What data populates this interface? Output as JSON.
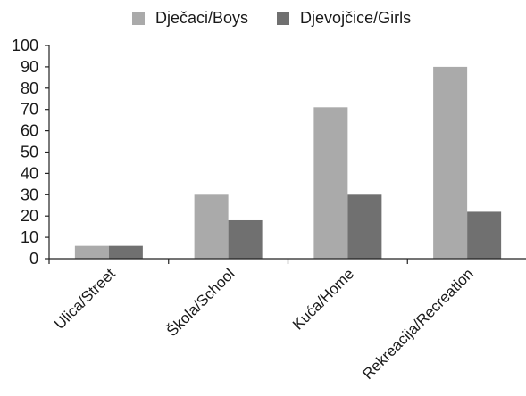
{
  "chart_data": {
    "type": "bar",
    "categories": [
      "Ulica/Street",
      "Škola/School",
      "Kuća/Home",
      "Rekreacija/Recreation"
    ],
    "series": [
      {
        "name": "Dječaci/Boys",
        "values": [
          6,
          30,
          71,
          90
        ],
        "color": "#aaaaaa"
      },
      {
        "name": "Djevojčice/Girls",
        "values": [
          6,
          18,
          30,
          22
        ],
        "color": "#707070"
      }
    ],
    "title": "",
    "xlabel": "",
    "ylabel": "",
    "ylim": [
      0,
      100
    ],
    "yticks": [
      0,
      10,
      20,
      30,
      40,
      50,
      60,
      70,
      80,
      90,
      100
    ],
    "grid": false,
    "legend": "top"
  }
}
